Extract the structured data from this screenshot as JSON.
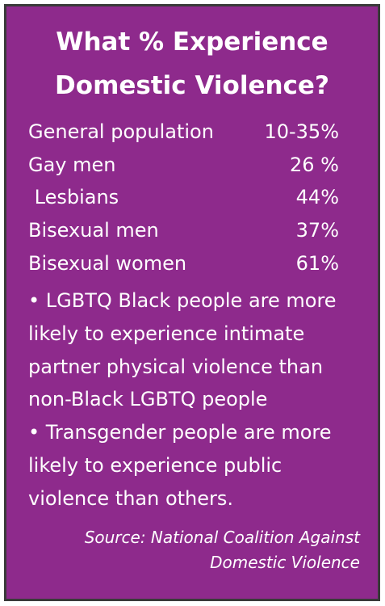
{
  "title_lines": [
    "What % Experience",
    "Domestic Violence?"
  ],
  "table": {
    "rows": [
      [
        "General population",
        "10-35%"
      ],
      [
        "Gay men",
        "26 %"
      ],
      [
        " Lesbians",
        "44%"
      ],
      [
        "Bisexual men",
        "37%"
      ],
      [
        "Bisexual women",
        "61%"
      ]
    ]
  },
  "bullets": [
    "• LGBTQ Black people are more likely to experience intimate partner physical violence than non-Black LGBTQ people",
    "• Transgender people are more likely to experience public violence than others."
  ],
  "source_lines": [
    "Source: National Coalition Against",
    "Domestic Violence"
  ]
}
